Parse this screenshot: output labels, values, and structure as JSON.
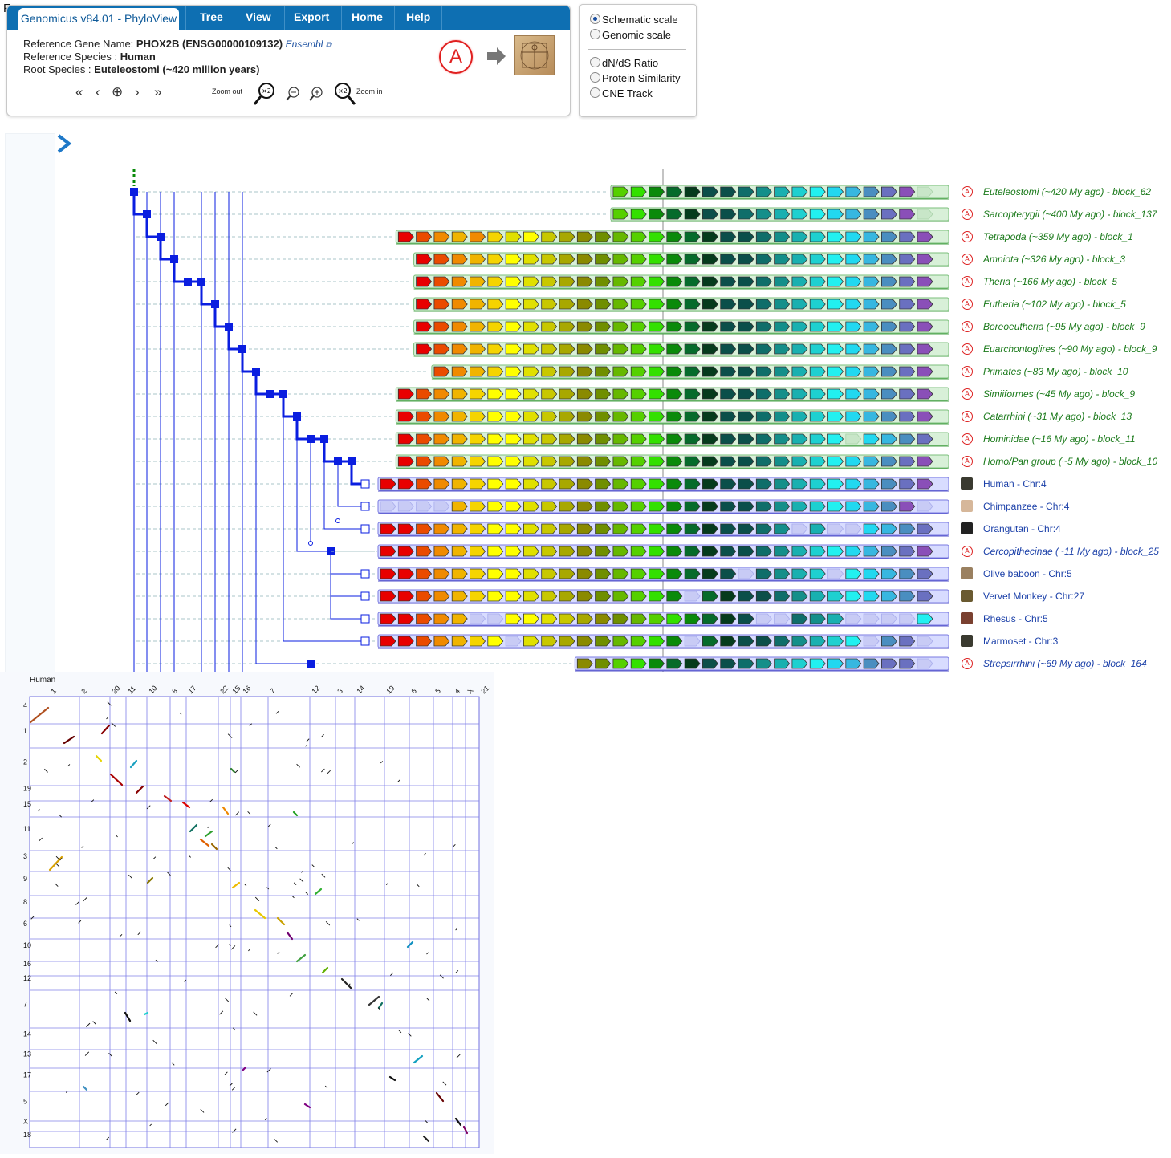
{
  "corner_letter": "F",
  "app": {
    "title": "Genomicus v84.01 - PhyloView"
  },
  "menu": [
    "Tree",
    "View",
    "Export",
    "Home",
    "Help"
  ],
  "info": {
    "ref_gene_label": "Reference Gene Name:",
    "ref_gene_value": "PHOX2B (ENSG00000109132)",
    "ensembl": "Ensembl",
    "ref_species_label": "Reference Species :",
    "ref_species_value": "Human",
    "root_label": "Root Species :",
    "root_value": "Euteleostomi (~420 million years)"
  },
  "zoom": {
    "out_label": "Zoom out",
    "in_label": "Zoom in",
    "factor": "×2"
  },
  "ancestor_badge": "A",
  "scale_options": [
    {
      "label": "Schematic scale",
      "selected": true
    },
    {
      "label": "Genomic scale",
      "selected": false
    }
  ],
  "track_options": [
    "dN/dS Ratio",
    "Protein Similarity",
    "CNE Track"
  ],
  "palette": [
    "#e80000",
    "#ea4b00",
    "#f08a00",
    "#f0b400",
    "#f5d400",
    "#ffff00",
    "#e0e000",
    "#c8c800",
    "#a8a800",
    "#8a8a00",
    "#6f8f00",
    "#66b800",
    "#55d000",
    "#33e000",
    "#11b011",
    "#0a8a0a",
    "#066b2b",
    "#053b1c",
    "#0b4f4a",
    "#0f6e6a",
    "#148f8a",
    "#19b0b0",
    "#1ed0d0",
    "#22f0f0",
    "#22d8f0",
    "#37b7e0",
    "#4a8ec0",
    "#6a70c0",
    "#8a4fb8"
  ],
  "rows": [
    {
      "label": "Euteleostomi (~420 My ago) - block_62",
      "kind": "anc",
      "start": 13,
      "colors": [
        12,
        13,
        15,
        16,
        17,
        18,
        18,
        19,
        20,
        21,
        22,
        23,
        24,
        25,
        26,
        27,
        28
      ]
    },
    {
      "label": "Sarcopterygii (~400 My ago) - block_137",
      "kind": "anc",
      "start": 13,
      "colors": [
        12,
        13,
        15,
        16,
        17,
        18,
        18,
        19,
        20,
        21,
        22,
        23,
        24,
        25,
        26,
        27,
        28
      ]
    },
    {
      "label": "Tetrapoda (~359 My ago) - block_1",
      "kind": "anc",
      "start": 1,
      "colors": [
        0,
        1,
        2,
        3,
        2,
        4,
        6,
        5,
        7,
        8,
        9,
        10,
        11,
        12,
        13,
        15,
        16,
        17,
        18,
        18,
        19,
        20,
        21,
        22,
        23,
        24,
        25,
        26,
        27,
        28
      ]
    },
    {
      "label": "Amniota (~326 My ago) - block_3",
      "kind": "anc",
      "start": 2,
      "colors": [
        0,
        1,
        2,
        3,
        4,
        5,
        6,
        7,
        8,
        9,
        10,
        11,
        12,
        13,
        15,
        16,
        17,
        18,
        18,
        19,
        20,
        21,
        22,
        23,
        24,
        25,
        26,
        27,
        28
      ]
    },
    {
      "label": "Theria (~166 My ago) - block_5",
      "kind": "anc",
      "start": 2,
      "colors": [
        0,
        1,
        2,
        3,
        4,
        5,
        6,
        7,
        8,
        9,
        10,
        11,
        12,
        13,
        15,
        16,
        17,
        18,
        18,
        19,
        20,
        21,
        22,
        23,
        24,
        25,
        26,
        27,
        28
      ]
    },
    {
      "label": "Eutheria (~102 My ago) - block_5",
      "kind": "anc",
      "start": 2,
      "colors": [
        0,
        1,
        2,
        3,
        4,
        5,
        6,
        7,
        8,
        9,
        10,
        11,
        12,
        13,
        15,
        16,
        17,
        18,
        18,
        19,
        20,
        21,
        22,
        23,
        24,
        25,
        26,
        27,
        28
      ]
    },
    {
      "label": "Boreoeutheria (~95 My ago) - block_9",
      "kind": "anc",
      "start": 2,
      "colors": [
        0,
        1,
        2,
        3,
        4,
        5,
        6,
        7,
        8,
        9,
        10,
        11,
        12,
        13,
        15,
        16,
        17,
        18,
        18,
        19,
        20,
        21,
        22,
        23,
        24,
        25,
        26,
        27,
        28
      ]
    },
    {
      "label": "Euarchontoglires (~90 My ago) - block_9",
      "kind": "anc",
      "start": 2,
      "colors": [
        0,
        1,
        2,
        3,
        4,
        5,
        6,
        7,
        8,
        9,
        10,
        11,
        12,
        13,
        15,
        16,
        17,
        18,
        18,
        19,
        20,
        21,
        22,
        23,
        24,
        25,
        26,
        27,
        28
      ]
    },
    {
      "label": "Primates (~83 My ago) - block_10",
      "kind": "anc",
      "start": 3,
      "colors": [
        1,
        2,
        3,
        4,
        5,
        6,
        7,
        8,
        9,
        10,
        11,
        12,
        13,
        15,
        16,
        17,
        18,
        18,
        19,
        20,
        21,
        22,
        23,
        24,
        25,
        26,
        27,
        28
      ]
    },
    {
      "label": "Simiiformes (~45 My ago) - block_9",
      "kind": "anc",
      "start": 1,
      "colors": [
        0,
        1,
        2,
        3,
        4,
        5,
        5,
        6,
        7,
        8,
        9,
        10,
        11,
        12,
        13,
        15,
        16,
        17,
        18,
        18,
        19,
        20,
        21,
        22,
        23,
        24,
        25,
        26,
        27,
        28
      ]
    },
    {
      "label": "Catarrhini (~31 My ago) - block_13",
      "kind": "anc",
      "start": 1,
      "colors": [
        0,
        1,
        2,
        3,
        4,
        5,
        5,
        6,
        7,
        8,
        9,
        10,
        11,
        12,
        13,
        15,
        16,
        17,
        18,
        18,
        19,
        20,
        21,
        22,
        23,
        24,
        25,
        26,
        27,
        28
      ]
    },
    {
      "label": "Hominidae (~16 My ago) - block_11",
      "kind": "anc",
      "start": 1,
      "colors": [
        0,
        1,
        2,
        3,
        4,
        5,
        5,
        6,
        7,
        8,
        9,
        10,
        11,
        12,
        13,
        15,
        16,
        17,
        18,
        18,
        19,
        20,
        21,
        22,
        23,
        -1,
        24,
        25,
        26,
        27,
        28
      ]
    },
    {
      "label": "Homo/Pan group (~5 My ago) - block_10",
      "kind": "anc",
      "start": 1,
      "colors": [
        0,
        1,
        2,
        3,
        4,
        5,
        5,
        6,
        7,
        8,
        9,
        10,
        11,
        12,
        13,
        15,
        16,
        17,
        18,
        18,
        19,
        20,
        21,
        22,
        23,
        24,
        25,
        26,
        27,
        28
      ]
    },
    {
      "label": "Human - Chr:4",
      "kind": "sp",
      "start": 0,
      "colors": [
        0,
        0,
        1,
        2,
        3,
        4,
        5,
        5,
        6,
        7,
        8,
        9,
        10,
        11,
        12,
        13,
        15,
        16,
        17,
        18,
        18,
        19,
        20,
        21,
        22,
        23,
        24,
        25,
        26,
        27,
        28
      ]
    },
    {
      "label": "Chimpanzee - Chr:4",
      "kind": "sp",
      "start": 0,
      "colors": [
        -1,
        -1,
        -1,
        -1,
        3,
        4,
        5,
        5,
        6,
        7,
        8,
        9,
        10,
        11,
        12,
        13,
        15,
        16,
        17,
        18,
        18,
        19,
        20,
        21,
        22,
        23,
        24,
        25,
        26,
        28,
        -1,
        -1
      ]
    },
    {
      "label": "Orangutan - Chr:4",
      "kind": "sp",
      "start": 0,
      "colors": [
        0,
        0,
        1,
        2,
        3,
        4,
        5,
        5,
        6,
        7,
        8,
        9,
        10,
        11,
        12,
        13,
        15,
        16,
        17,
        18,
        18,
        19,
        20,
        -1,
        21,
        -1,
        -1,
        24,
        25,
        26,
        27
      ]
    },
    {
      "label": "Cercopithecinae (~11 My ago) - block_25",
      "kind": "anc2",
      "start": 0,
      "colors": [
        0,
        0,
        1,
        2,
        3,
        4,
        5,
        5,
        6,
        7,
        8,
        9,
        10,
        11,
        12,
        13,
        15,
        16,
        17,
        18,
        18,
        19,
        20,
        21,
        22,
        23,
        24,
        25,
        26,
        27,
        28
      ]
    },
    {
      "label": "Olive baboon - Chr:5",
      "kind": "sp",
      "start": 0,
      "colors": [
        0,
        0,
        1,
        2,
        3,
        4,
        5,
        5,
        6,
        7,
        8,
        9,
        10,
        11,
        12,
        13,
        15,
        16,
        17,
        18,
        -1,
        19,
        20,
        21,
        22,
        -1,
        23,
        24,
        25,
        26,
        27
      ]
    },
    {
      "label": "Vervet Monkey - Chr:27",
      "kind": "sp",
      "start": 0,
      "colors": [
        0,
        0,
        1,
        2,
        3,
        4,
        5,
        5,
        6,
        7,
        8,
        9,
        10,
        11,
        12,
        13,
        15,
        -1,
        16,
        17,
        18,
        18,
        19,
        20,
        21,
        22,
        23,
        24,
        25,
        26,
        27
      ]
    },
    {
      "label": "Rhesus - Chr:5",
      "kind": "sp",
      "start": 0,
      "colors": [
        0,
        0,
        1,
        2,
        3,
        -1,
        -1,
        5,
        5,
        6,
        7,
        8,
        9,
        10,
        11,
        12,
        13,
        15,
        16,
        17,
        18,
        -1,
        -1,
        19,
        20,
        21,
        -1,
        -1,
        -1,
        -1,
        23
      ]
    },
    {
      "label": "Marmoset - Chr:3",
      "kind": "sp",
      "start": 0,
      "colors": [
        0,
        0,
        1,
        2,
        3,
        4,
        5,
        -1,
        6,
        7,
        8,
        9,
        10,
        11,
        12,
        13,
        15,
        -1,
        16,
        17,
        18,
        18,
        19,
        20,
        21,
        22,
        23,
        -1,
        26,
        27
      ]
    },
    {
      "label": "Strepsirrhini (~69 My ago) - block_164",
      "kind": "anc2",
      "start": 11,
      "colors": [
        9,
        10,
        12,
        13,
        15,
        16,
        17,
        18,
        18,
        19,
        20,
        21,
        22,
        23,
        24,
        25,
        26,
        27,
        27
      ]
    }
  ],
  "dotplot": {
    "title": "Human",
    "x_labels": [
      "1",
      "2",
      "20",
      "11",
      "10",
      "8",
      "17",
      "22",
      "15",
      "16",
      "7",
      "12",
      "3",
      "14",
      "19",
      "6",
      "5",
      "4",
      "X",
      "21"
    ],
    "y_labels": [
      "4",
      "1",
      "2",
      "19",
      "15",
      "11",
      "3",
      "9",
      "8",
      "6",
      "10",
      "16",
      "12",
      "7",
      "14",
      "13",
      "17",
      "5",
      "X",
      "18"
    ]
  }
}
